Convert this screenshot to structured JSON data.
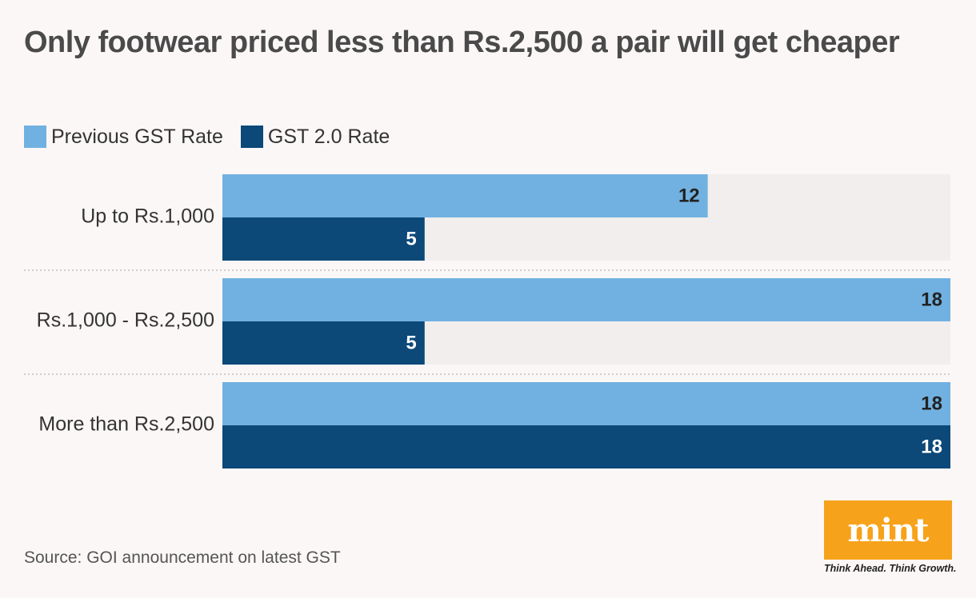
{
  "title": "Only footwear priced less than Rs.2,500 a pair will get cheaper",
  "source": "Source: GOI announcement on latest GST",
  "branding": {
    "logo_text": "mint",
    "tagline": "Think Ahead. Think Growth."
  },
  "colors": {
    "previous": "#71b1e1",
    "gst2": "#0c4878",
    "track": "#f2eeee",
    "background": "#fcf7f7",
    "logo_bg": "#f7a21b"
  },
  "chart_data": {
    "type": "bar",
    "orientation": "horizontal",
    "categories": [
      "Up to Rs.1,000",
      "Rs.1,000 - Rs.2,500",
      "More than Rs.2,500"
    ],
    "series": [
      {
        "name": "Previous GST Rate",
        "values": [
          12,
          18,
          18
        ]
      },
      {
        "name": "GST 2.0 Rate",
        "values": [
          5,
          5,
          18
        ]
      }
    ],
    "xlim": [
      0,
      18
    ],
    "legend": "top-left",
    "grid": false,
    "data_labels": true
  }
}
